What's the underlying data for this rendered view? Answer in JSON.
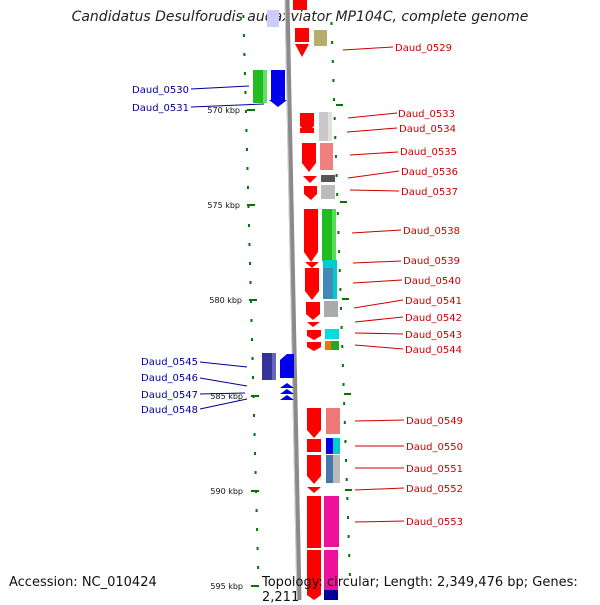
{
  "title": "Candidatus Desulforudis audaxviator MP104C, complete genome",
  "footer": {
    "accession": "Accession: NC_010424",
    "topology": "Topology: circular; Length: 2,349,476 bp; Genes: 2,211"
  },
  "colors": {
    "backbone": "#8c8c8c",
    "forward_gene": "#ff0000",
    "reverse_gene": "#0000ff",
    "forward_label": "#cc0000",
    "reverse_label": "#000099",
    "tick": "#007700"
  },
  "kbp_ticks": [
    {
      "label": "570 kbp",
      "pos_kbp": 570
    },
    {
      "label": "575 kbp",
      "pos_kbp": 575
    },
    {
      "label": "580 kbp",
      "pos_kbp": 580
    },
    {
      "label": "585 kbp",
      "pos_kbp": 585
    },
    {
      "label": "590 kbp",
      "pos_kbp": 590
    },
    {
      "label": "595 kbp",
      "pos_kbp": 595
    }
  ],
  "forward_genes": [
    {
      "name": "Daud_0529"
    },
    {
      "name": "Daud_0533"
    },
    {
      "name": "Daud_0534"
    },
    {
      "name": "Daud_0535"
    },
    {
      "name": "Daud_0536"
    },
    {
      "name": "Daud_0537"
    },
    {
      "name": "Daud_0538"
    },
    {
      "name": "Daud_0539"
    },
    {
      "name": "Daud_0540"
    },
    {
      "name": "Daud_0541"
    },
    {
      "name": "Daud_0542"
    },
    {
      "name": "Daud_0543"
    },
    {
      "name": "Daud_0544"
    },
    {
      "name": "Daud_0549"
    },
    {
      "name": "Daud_0550"
    },
    {
      "name": "Daud_0551"
    },
    {
      "name": "Daud_0552"
    },
    {
      "name": "Daud_0553"
    }
  ],
  "reverse_genes": [
    {
      "name": "Daud_0530"
    },
    {
      "name": "Daud_0531"
    },
    {
      "name": "Daud_0545"
    },
    {
      "name": "Daud_0546"
    },
    {
      "name": "Daud_0547"
    },
    {
      "name": "Daud_0548"
    }
  ]
}
